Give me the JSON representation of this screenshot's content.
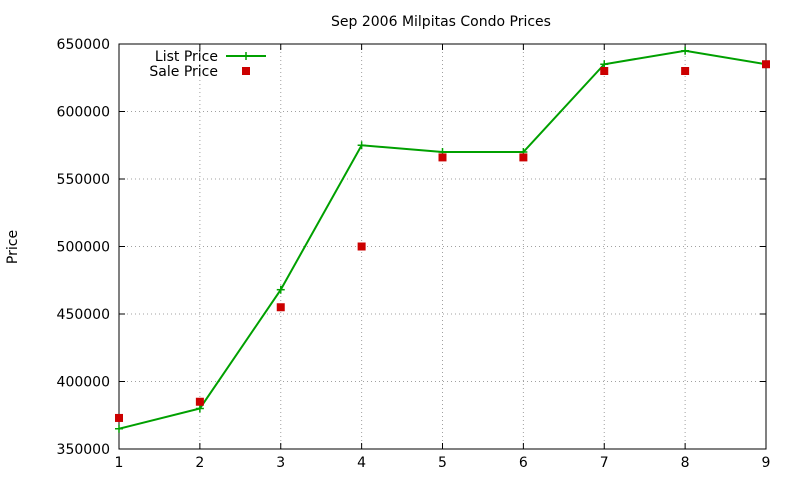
{
  "chart_data": {
    "type": "line",
    "title": "Sep 2006 Milpitas Condo Prices",
    "xlabel": "",
    "ylabel": "Price",
    "xlim": [
      1,
      9
    ],
    "ylim": [
      350000,
      650000
    ],
    "x_ticks": [
      "1",
      "2",
      "3",
      "4",
      "5",
      "6",
      "7",
      "8",
      "9"
    ],
    "y_ticks": [
      "350000",
      "400000",
      "450000",
      "500000",
      "550000",
      "600000",
      "650000"
    ],
    "grid": true,
    "legend_position": "top-left",
    "series": [
      {
        "name": "List Price",
        "style": "line-with-plus-markers",
        "color": "#00a000",
        "x": [
          1,
          2,
          3,
          4,
          5,
          6,
          7,
          8,
          9
        ],
        "values": [
          365000,
          380000,
          468000,
          575000,
          570000,
          570000,
          635000,
          645000,
          635000
        ]
      },
      {
        "name": "Sale Price",
        "style": "square-markers",
        "color": "#cc0000",
        "x": [
          1,
          2,
          3,
          4,
          5,
          6,
          7,
          8,
          9
        ],
        "values": [
          373000,
          385000,
          455000,
          500000,
          566000,
          566000,
          630000,
          630000,
          635000
        ]
      }
    ]
  }
}
